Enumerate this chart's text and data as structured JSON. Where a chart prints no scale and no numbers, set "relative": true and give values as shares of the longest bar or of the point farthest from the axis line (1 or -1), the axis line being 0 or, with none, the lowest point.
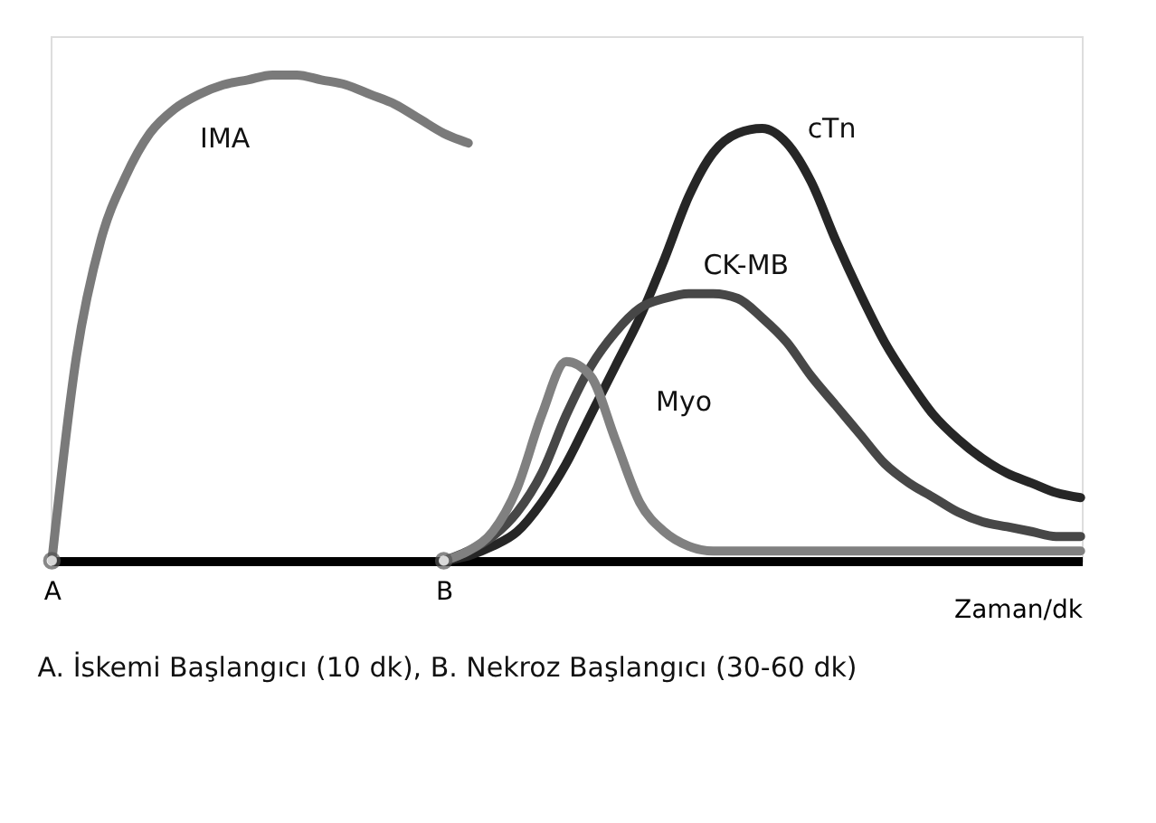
{
  "chart_data": {
    "type": "line",
    "relative": true,
    "xlabel": "Zaman/dk",
    "categories": [
      "A",
      null,
      null,
      null,
      null,
      null,
      null,
      null,
      null,
      null,
      null,
      null,
      null,
      null,
      null,
      null,
      "B",
      null,
      null,
      null,
      null,
      null,
      null,
      null,
      null,
      null,
      null,
      null,
      null,
      null,
      null,
      null,
      null,
      null,
      null,
      null,
      null,
      null,
      null,
      null,
      null,
      null,
      null
    ],
    "series": [
      {
        "name": "IMA",
        "color": "#7a7a7a",
        "values": [
          0,
          0.42,
          0.66,
          0.79,
          0.88,
          0.93,
          0.96,
          0.98,
          0.99,
          1.0,
          1.0,
          0.99,
          0.98,
          0.96,
          0.94,
          0.91,
          0.88,
          0.86,
          null,
          null,
          null,
          null,
          null,
          null,
          null,
          null,
          null,
          null,
          null,
          null,
          null,
          null,
          null,
          null,
          null,
          null,
          null,
          null,
          null,
          null,
          null,
          null,
          null
        ]
      },
      {
        "name": "cTn",
        "color": "#262626",
        "values": [
          null,
          null,
          null,
          null,
          null,
          null,
          null,
          null,
          null,
          null,
          null,
          null,
          null,
          null,
          null,
          null,
          0,
          0.01,
          0.03,
          0.06,
          0.12,
          0.2,
          0.3,
          0.4,
          0.5,
          0.62,
          0.75,
          0.84,
          0.88,
          0.89,
          0.86,
          0.78,
          0.66,
          0.55,
          0.45,
          0.37,
          0.3,
          0.25,
          0.21,
          0.18,
          0.16,
          0.14,
          0.13
        ]
      },
      {
        "name": "CK-MB",
        "color": "#474747",
        "values": [
          null,
          null,
          null,
          null,
          null,
          null,
          null,
          null,
          null,
          null,
          null,
          null,
          null,
          null,
          null,
          null,
          0,
          0.02,
          0.05,
          0.1,
          0.18,
          0.3,
          0.4,
          0.47,
          0.52,
          0.54,
          0.55,
          0.55,
          0.54,
          0.5,
          0.45,
          0.38,
          0.32,
          0.26,
          0.2,
          0.16,
          0.13,
          0.1,
          0.08,
          0.07,
          0.06,
          0.05,
          0.05
        ]
      },
      {
        "name": "Myo",
        "color": "#808080",
        "values": [
          null,
          null,
          null,
          null,
          null,
          null,
          null,
          null,
          null,
          null,
          null,
          null,
          null,
          null,
          null,
          null,
          0,
          0.02,
          0.06,
          0.15,
          0.3,
          0.41,
          0.38,
          0.25,
          0.12,
          0.06,
          0.03,
          0.02,
          0.02,
          0.02,
          0.02,
          0.02,
          0.02,
          0.02,
          0.02,
          0.02,
          0.02,
          0.02,
          0.02,
          0.02,
          0.02,
          0.02,
          0.02
        ]
      }
    ],
    "annotations": [
      "A. İskemi Başlangıcı (10 dk), B. Nekroz Başlangıcı (30-60 dk)"
    ],
    "marker": "none",
    "line_style": "solid",
    "legend": false,
    "grid": false
  }
}
